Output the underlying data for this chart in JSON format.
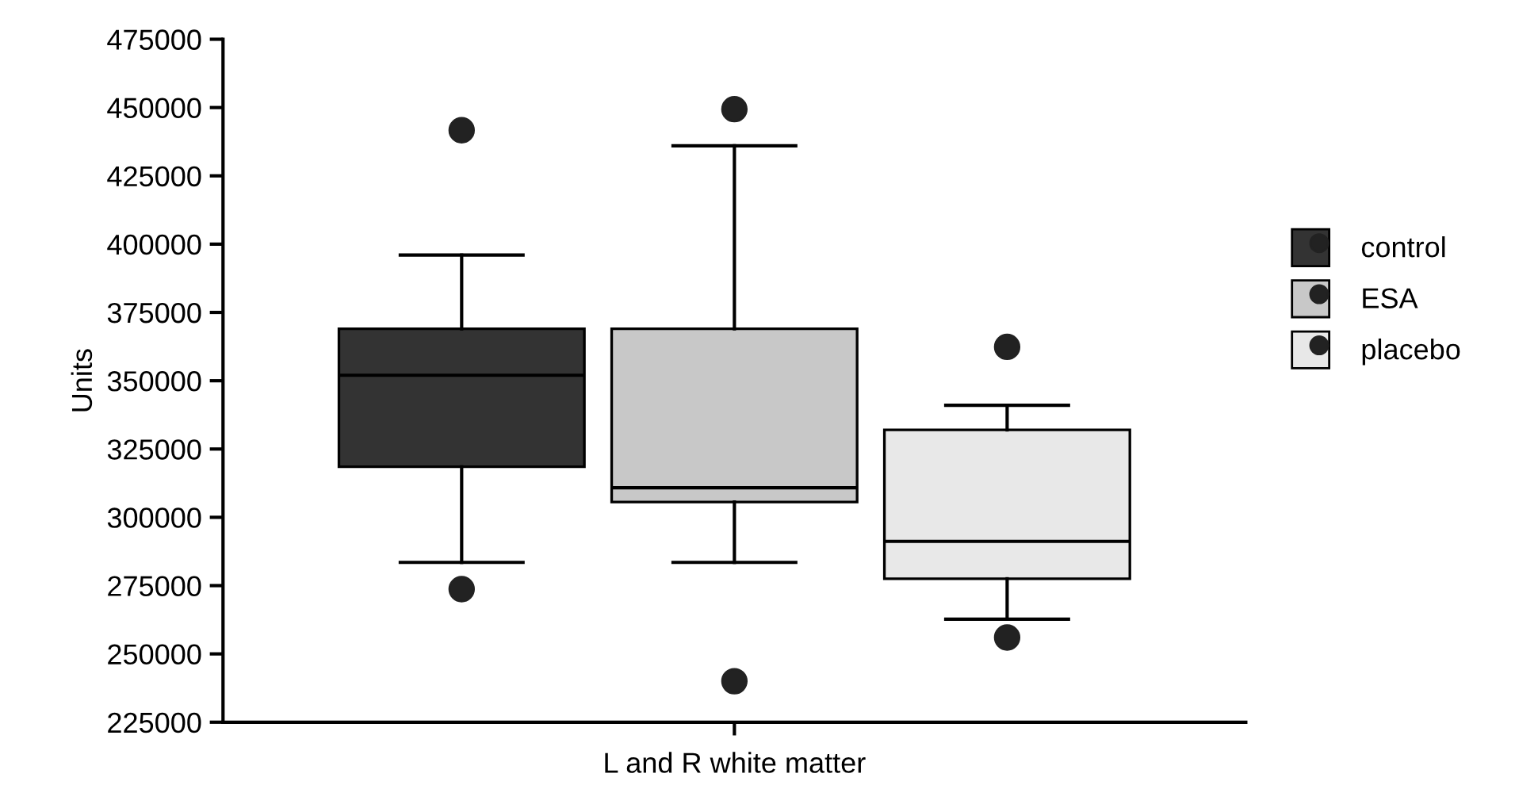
{
  "chart_data": {
    "type": "box",
    "ylabel": "Units",
    "xlabel": "L and R white matter",
    "categories": [
      null
    ],
    "ylim": [
      225000,
      475000
    ],
    "yticks": [
      225000,
      250000,
      275000,
      300000,
      325000,
      350000,
      375000,
      400000,
      425000,
      450000,
      475000
    ],
    "grid": false,
    "legend": "right",
    "series": [
      {
        "name": "control",
        "color": "#333333",
        "boxes": [
          {
            "low": 283500,
            "q1": 318500,
            "median": 352000,
            "q3": 369000,
            "high": 396000,
            "outliers": [
              441700,
              273700
            ]
          }
        ]
      },
      {
        "name": "ESA",
        "color": "#c8c8c8",
        "boxes": [
          {
            "low": 283500,
            "q1": 305600,
            "median": 310800,
            "q3": 369000,
            "high": 436000,
            "outliers": [
              449400,
              240000
            ]
          }
        ]
      },
      {
        "name": "placebo",
        "color": "#e8e8e8",
        "boxes": [
          {
            "low": 262700,
            "q1": 277500,
            "median": 291200,
            "q3": 332000,
            "high": 341000,
            "outliers": [
              362400,
              256000
            ]
          }
        ]
      }
    ]
  }
}
